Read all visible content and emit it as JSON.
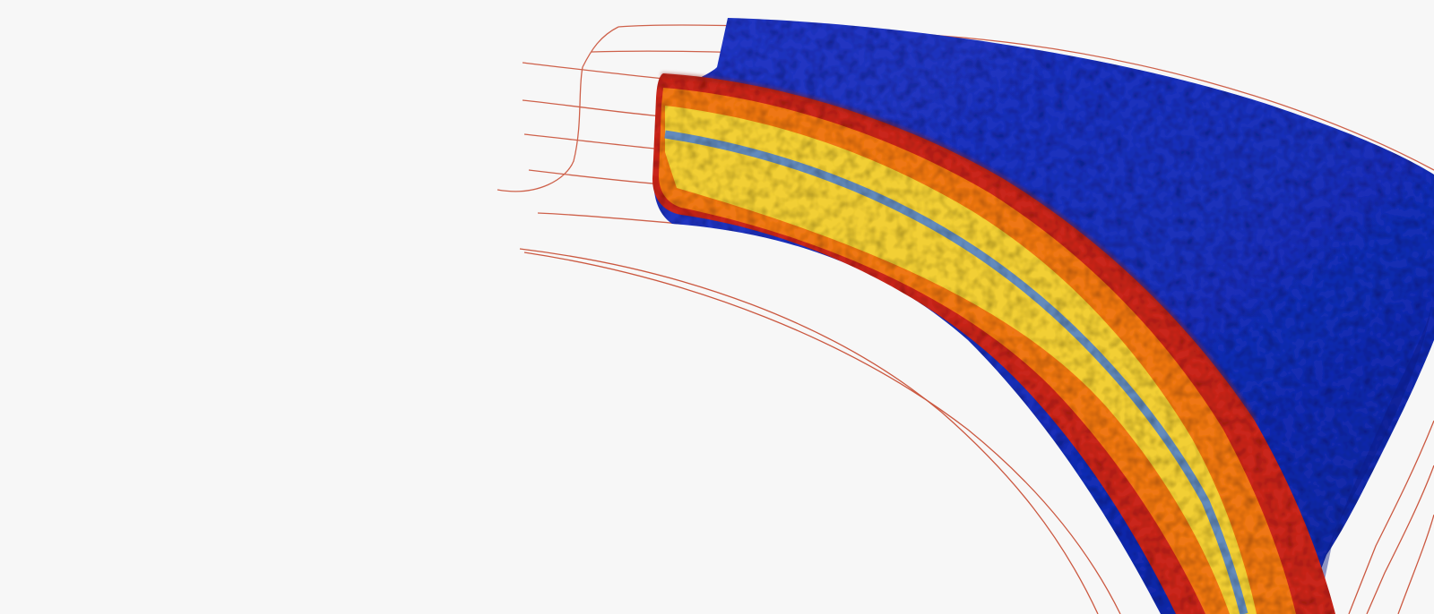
{
  "scene": {
    "description_label": "",
    "colors": {
      "background": "#f7f7f7",
      "outer_volume": "#1a2fb8",
      "outer_volume_dark": "#0f1d8f",
      "band_red": "#d42a1c",
      "band_orange": "#f07a12",
      "band_yellow": "#f2d23a",
      "band_core": "#4f86d6",
      "streamline": "#c7482e"
    }
  }
}
